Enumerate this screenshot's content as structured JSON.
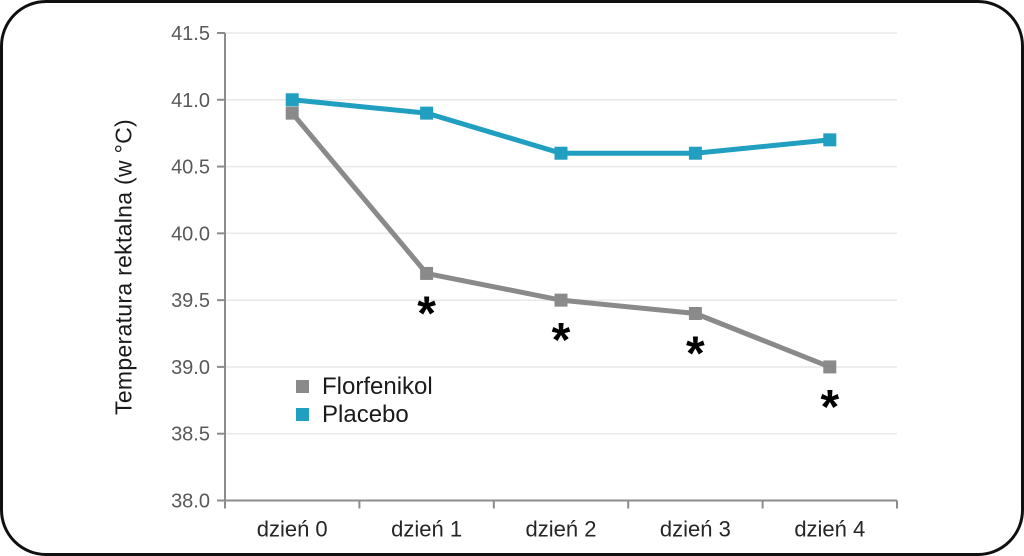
{
  "chart_data": {
    "type": "line",
    "title": "",
    "xlabel": "",
    "ylabel": "Temperatura rektalna (w °C)",
    "categories": [
      "dzień 0",
      "dzień 1",
      "dzień 2",
      "dzień 3",
      "dzień 4"
    ],
    "series": [
      {
        "name": "Florfenikol",
        "color": "#8A8A8A",
        "marker": "square",
        "values": [
          40.9,
          39.7,
          39.5,
          39.4,
          39.0
        ],
        "significant": [
          false,
          true,
          true,
          true,
          true
        ]
      },
      {
        "name": "Placebo",
        "color": "#219FC0",
        "marker": "square",
        "values": [
          41.0,
          40.9,
          40.6,
          40.6,
          40.7
        ],
        "significant": [
          false,
          false,
          false,
          false,
          false
        ]
      }
    ],
    "ylim": [
      38.0,
      41.5
    ],
    "yticks": [
      "38.0",
      "38.5",
      "39.0",
      "39.5",
      "40.0",
      "40.5",
      "41.0",
      "41.5"
    ],
    "significance_marker": "*",
    "grid": true,
    "legend_position": "inside-left-lower"
  },
  "style_colors": {
    "gridline": "#E9E9E9",
    "axis": "#8C8C8C",
    "ytick_label": "#595959",
    "xtick_label": "#262626",
    "significance": "#000000",
    "frame_border": "#101010",
    "background": "#FFFFFF"
  }
}
